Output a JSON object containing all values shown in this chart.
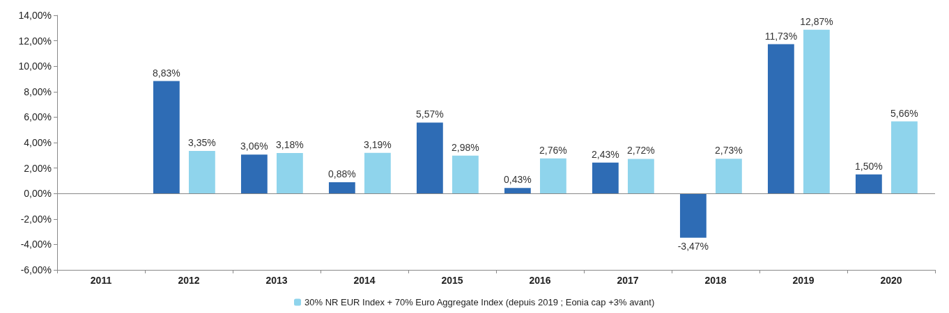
{
  "chart_data": {
    "type": "bar",
    "categories": [
      "2011",
      "2012",
      "2013",
      "2014",
      "2015",
      "2016",
      "2017",
      "2018",
      "2019",
      "2020"
    ],
    "series": [
      {
        "color": "#2e6cb5",
        "values": [
          null,
          8.83,
          3.06,
          0.88,
          5.57,
          0.43,
          2.43,
          -3.47,
          11.73,
          1.5
        ],
        "value_labels": [
          null,
          "8,83%",
          "3,06%",
          "0,88%",
          "5,57%",
          "0,43%",
          "2,43%",
          "-3,47%",
          "11,73%",
          "1,50%"
        ]
      },
      {
        "name": "30% NR EUR Index + 70% Euro Aggregate Index (depuis 2019 ; Eonia cap +3% avant)",
        "color": "#8fd4ec",
        "values": [
          null,
          3.35,
          3.18,
          3.19,
          2.98,
          2.76,
          2.72,
          2.73,
          12.87,
          5.66
        ],
        "value_labels": [
          null,
          "3,35%",
          "3,18%",
          "3,19%",
          "2,98%",
          "2,76%",
          "2,72%",
          "2,73%",
          "12,87%",
          "5,66%"
        ]
      }
    ],
    "ylim": [
      -6,
      14
    ],
    "yticks": [
      {
        "value": -6,
        "label": "-6,00%"
      },
      {
        "value": -4,
        "label": "-4,00%"
      },
      {
        "value": -2,
        "label": "-2,00%"
      },
      {
        "value": 0,
        "label": "0,00%"
      },
      {
        "value": 2,
        "label": "2,00%"
      },
      {
        "value": 4,
        "label": "4,00%"
      },
      {
        "value": 6,
        "label": "6,00%"
      },
      {
        "value": 8,
        "label": "8,00%"
      },
      {
        "value": 10,
        "label": "10,00%"
      },
      {
        "value": 12,
        "label": "12,00%"
      },
      {
        "value": 14,
        "label": "14,00%"
      }
    ],
    "ref_lines": [
      {
        "axis": "y",
        "value": 0,
        "color": "#888888"
      }
    ],
    "grid": false,
    "legend": "bottom"
  }
}
